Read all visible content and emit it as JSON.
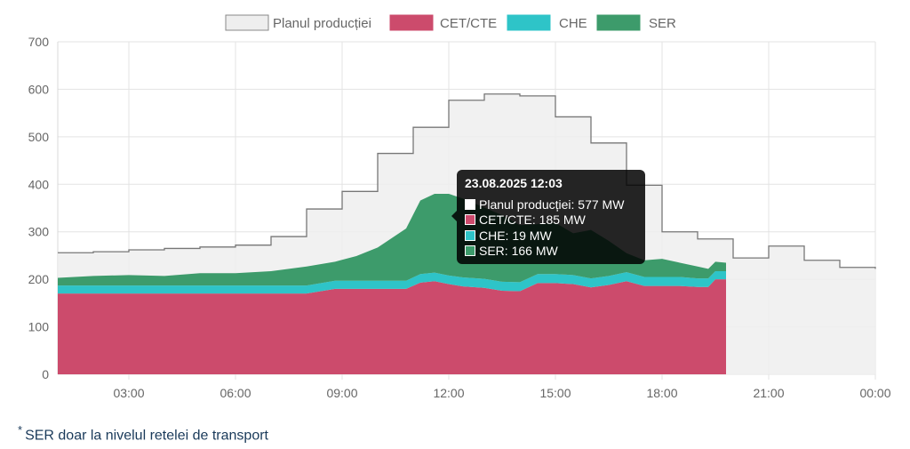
{
  "chart_data": {
    "type": "area",
    "x_ticks": [
      "03:00",
      "06:00",
      "09:00",
      "12:00",
      "15:00",
      "18:00",
      "21:00",
      "00:00"
    ],
    "y_ticks": [
      "0",
      "100",
      "200",
      "300",
      "400",
      "500",
      "600",
      "700"
    ],
    "ylim": [
      0,
      700
    ],
    "grid": true,
    "legend_position": "top-center",
    "series": [
      {
        "name": "Planul producției",
        "color": "#eeeeee",
        "stroke": "#777777",
        "type": "step",
        "hours": [
          1,
          2,
          3,
          4,
          5,
          6,
          7,
          8,
          9,
          10,
          11,
          12,
          13,
          14,
          15,
          16,
          17,
          18,
          19,
          20,
          21,
          22,
          23,
          24
        ],
        "values": [
          256,
          258,
          262,
          265,
          268,
          272,
          290,
          348,
          385,
          465,
          520,
          577,
          590,
          586,
          542,
          487,
          398,
          300,
          285,
          245,
          270,
          240,
          225,
          222
        ]
      },
      {
        "name": "CET/CTE",
        "color": "#cc4b6c",
        "type": "stacked-area",
        "x": [
          1,
          2,
          3,
          4,
          5,
          6,
          7,
          8,
          8.8,
          9.4,
          10,
          10.8,
          11.2,
          11.6,
          12,
          12.4,
          13,
          13.5,
          14,
          14.5,
          15,
          15.5,
          16,
          16.5,
          17,
          17.5,
          18,
          18.5,
          19,
          19.3,
          19.5,
          19.8
        ],
        "values": [
          170,
          170,
          170,
          170,
          170,
          170,
          170,
          170,
          180,
          180,
          180,
          180,
          193,
          196,
          190,
          185,
          182,
          176,
          175,
          192,
          192,
          190,
          183,
          188,
          196,
          186,
          186,
          186,
          184,
          184,
          200,
          200
        ]
      },
      {
        "name": "CHE",
        "color": "#2ec4c8",
        "type": "stacked-area",
        "x": [
          1,
          2,
          3,
          4,
          5,
          6,
          7,
          8,
          8.8,
          9.4,
          10,
          10.8,
          11.2,
          11.6,
          12,
          12.4,
          13,
          13.5,
          14,
          14.5,
          15,
          15.5,
          16,
          16.5,
          17,
          17.5,
          18,
          18.5,
          19,
          19.3,
          19.5,
          19.8
        ],
        "values": [
          17,
          17,
          17,
          17,
          17,
          17,
          17,
          17,
          17,
          17,
          17,
          17,
          18,
          18,
          18,
          19,
          19,
          19,
          19,
          19,
          19,
          19,
          19,
          19,
          19,
          19,
          19,
          19,
          18,
          18,
          17,
          17
        ]
      },
      {
        "name": "SER",
        "color": "#3d9b6b",
        "type": "stacked-area",
        "x": [
          1,
          2,
          3,
          4,
          5,
          6,
          7,
          8,
          8.8,
          9.4,
          10,
          10.8,
          11.2,
          11.6,
          12,
          12.4,
          13,
          13.5,
          14,
          14.5,
          15,
          15.5,
          16,
          16.5,
          17,
          17.5,
          18,
          18.5,
          19,
          19.3,
          19.5,
          19.8
        ],
        "values": [
          16,
          20,
          22,
          20,
          26,
          26,
          30,
          40,
          40,
          52,
          70,
          110,
          155,
          166,
          172,
          166,
          150,
          140,
          120,
          105,
          108,
          88,
          102,
          74,
          40,
          35,
          38,
          30,
          25,
          20,
          20,
          18
        ]
      }
    ],
    "tooltip": {
      "title": "23.08.2025 12:03",
      "rows": [
        {
          "label": "Planul producției: 577 MW",
          "color": "#ffffff"
        },
        {
          "label": "CET/CTE: 185 MW",
          "color": "#cc4b6c"
        },
        {
          "label": "CHE: 19 MW",
          "color": "#2ec4c8"
        },
        {
          "label": "SER: 166 MW",
          "color": "#3d9b6b"
        }
      ]
    }
  },
  "footnote": {
    "mark": "*",
    "text": "SER doar la nivelul retelei de transport"
  }
}
